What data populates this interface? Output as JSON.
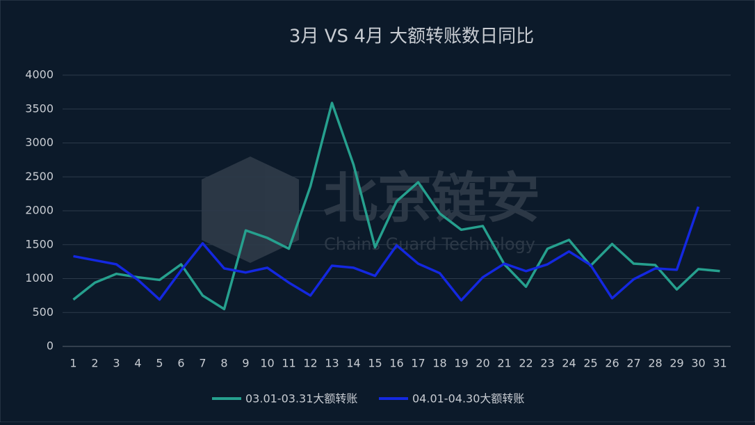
{
  "chart_data": {
    "type": "line",
    "title": "3月 VS 4月 大额转账数日同比",
    "watermark": {
      "title": "北京链安",
      "subtitle": "Chains Guard Technology"
    },
    "categories": [
      "1",
      "2",
      "3",
      "4",
      "5",
      "6",
      "7",
      "8",
      "9",
      "10",
      "11",
      "12",
      "13",
      "14",
      "15",
      "16",
      "17",
      "18",
      "19",
      "20",
      "21",
      "22",
      "23",
      "24",
      "25",
      "26",
      "27",
      "28",
      "29",
      "30",
      "31"
    ],
    "series": [
      {
        "name": "03.01-03.31大额转账",
        "color": "#26a08e",
        "values": [
          690,
          940,
          1070,
          1020,
          980,
          1210,
          750,
          550,
          1710,
          1600,
          1440,
          2360,
          3590,
          2680,
          1460,
          2140,
          2420,
          1960,
          1720,
          1775,
          1210,
          880,
          1440,
          1570,
          1190,
          1510,
          1220,
          1200,
          840,
          1140,
          1110
        ]
      },
      {
        "name": "04.01-04.30大额转账",
        "color": "#1428e0",
        "values": [
          1330,
          1270,
          1210,
          980,
          690,
          1120,
          1520,
          1150,
          1090,
          1160,
          940,
          750,
          1190,
          1160,
          1040,
          1490,
          1220,
          1080,
          680,
          1020,
          1220,
          1110,
          1210,
          1400,
          1200,
          710,
          990,
          1150,
          1130,
          2060,
          null
        ]
      }
    ],
    "ylim": [
      0,
      4000
    ],
    "yticks": [
      0,
      500,
      1000,
      1500,
      2000,
      2500,
      3000,
      3500,
      4000
    ],
    "grid": true,
    "legend": "bottom"
  }
}
